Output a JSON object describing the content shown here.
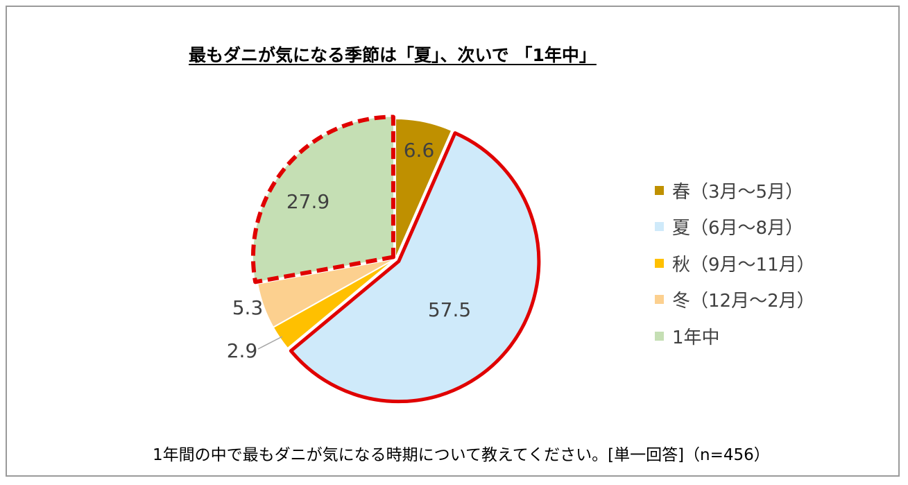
{
  "chart_data": {
    "type": "pie",
    "title": "最もダニが気になる季節は「夏」、次いで 「1年中」",
    "categories": [
      "春（3月～5月）",
      "夏（6月～8月）",
      "秋（9月～11月）",
      "冬（12月～2月）",
      "1年中"
    ],
    "values": [
      6.6,
      57.5,
      2.9,
      5.3,
      27.9
    ],
    "value_labels": [
      "6.6",
      "57.5",
      "2.9",
      "5.3",
      "27.9"
    ],
    "colors": [
      "#bf9000",
      "#cfeafa",
      "#ffc000",
      "#fcd08f",
      "#c5dfb4"
    ],
    "highlights": [
      "none",
      "solid",
      "none",
      "none",
      "dashed"
    ],
    "highlight_color": "#e00000",
    "start_angle_deg": 0,
    "direction": "clockwise",
    "legend_position": "right",
    "footnote": "1年間の中で最もダニが気になる時期について教えてください。[単一回答]（n=456）"
  }
}
